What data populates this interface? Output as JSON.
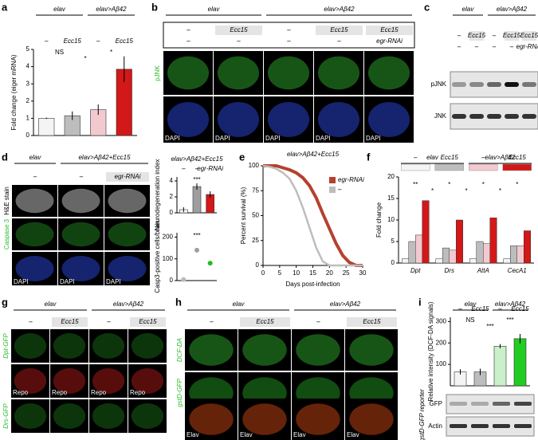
{
  "panels": {
    "b": {
      "letter": "b",
      "groups": [
        "elav",
        "elav>Aβ42"
      ],
      "conditions": [
        "–",
        "Ecc15",
        "–",
        "Ecc15",
        "Ecc15"
      ],
      "rnai": [
        "–",
        "–",
        "–",
        "–",
        "egr-RNAi"
      ],
      "stain": "pJNK",
      "dapi": "DAPI"
    },
    "c": {
      "letter": "c",
      "groups": [
        "elav",
        "elav>Aβ42"
      ],
      "conditions": [
        "–",
        "Ecc15",
        "–",
        "Ecc15",
        "Ecc15"
      ],
      "rnai": [
        "–",
        "–",
        "–",
        "–",
        "egr-RNAi"
      ],
      "blots": [
        "pJNK",
        "JNK"
      ]
    },
    "d": {
      "letter": "d",
      "groups": [
        "elav",
        "elav>Aβ42+Ecc15"
      ],
      "conditions": [
        "–",
        "–",
        "egr-RNAi"
      ],
      "rows": [
        "H&E stain",
        "Caspase 3"
      ],
      "dapi": "DAPI"
    },
    "g": {
      "letter": "g",
      "groups": [
        "elav",
        "elav>Aβ42"
      ],
      "conditions": [
        "–",
        "Ecc15",
        "–",
        "Ecc15"
      ],
      "rows": [
        "Dpt-GFP",
        "Drs-GFP"
      ],
      "counter": "Repo"
    },
    "h": {
      "letter": "h",
      "groups": [
        "elav",
        "elav>Aβ42"
      ],
      "conditions": [
        "–",
        "Ecc15",
        "–",
        "Ecc15"
      ],
      "rows": [
        "DCF-DA",
        "gstD-GFP"
      ],
      "counter": "Elav"
    },
    "i": {
      "blots": [
        "GFP",
        "Actin"
      ],
      "reporter": "gstD-GFP reporter"
    }
  },
  "chart_data": [
    {
      "type": "bar",
      "letter": "a",
      "groups": [
        "elav",
        "elav>Aβ42"
      ],
      "categories": [
        "–",
        "Ecc15",
        "–",
        "Ecc15"
      ],
      "ylabel": "Fold change (eiger mRNA)",
      "values": [
        1,
        1.15,
        1.5,
        3.85
      ],
      "errors": [
        0.04,
        0.25,
        0.3,
        0.75
      ],
      "colors": [
        "#f4f4f4",
        "#bdbdbd",
        "#f3c9d0",
        "#d21818"
      ],
      "ylim": [
        0,
        5
      ],
      "yticks": [
        0,
        1,
        2,
        3,
        4,
        5
      ],
      "annotations": [
        "NS",
        "*",
        "*"
      ]
    },
    {
      "type": "bar",
      "title": "elav>Aβ42+Ecc15",
      "categories": [
        "–",
        "–",
        "egr-RNAi"
      ],
      "ylabel": "Neurodegeneration index",
      "values": [
        0.4,
        3.3,
        2.3
      ],
      "errors": [
        0.3,
        0.4,
        0.4
      ],
      "colors": [
        "#ffffff",
        "#9e9e9e",
        "#d21818"
      ],
      "ylim": [
        0,
        4.5
      ],
      "yticks": [
        0,
        2,
        4
      ],
      "annotations": [
        "***"
      ]
    },
    {
      "type": "dot",
      "ylabel": "Casp3-positive cells/brain",
      "values": [
        5,
        140,
        80
      ],
      "colors": [
        "#bbbbbb",
        "#9e9e9e",
        "#22bb22"
      ],
      "ylim": [
        0,
        220
      ],
      "yticks": [
        0,
        100,
        200
      ],
      "annotations": [
        "***"
      ]
    },
    {
      "type": "line",
      "letter": "e",
      "title": "elav>Aβ42+Ecc15",
      "xlabel": "Days post-infection",
      "ylabel": "Percent survival (%)",
      "x": [
        0,
        2,
        4,
        6,
        8,
        10,
        12,
        14,
        16,
        18,
        20,
        22,
        24,
        26,
        28,
        30
      ],
      "series": [
        {
          "name": "egr-RNAi",
          "color": "#b5412f",
          "values": [
            100,
            100,
            100,
            98,
            96,
            93,
            88,
            80,
            68,
            52,
            37,
            22,
            10,
            3,
            0,
            0
          ]
        },
        {
          "name": "–",
          "color": "#bdbdbd",
          "values": [
            100,
            99,
            97,
            93,
            87,
            75,
            58,
            38,
            18,
            4,
            0,
            0,
            0,
            0,
            0,
            0
          ]
        }
      ],
      "xlim": [
        0,
        30
      ],
      "ylim": [
        0,
        100
      ],
      "xticks": [
        0,
        5,
        10,
        15,
        20,
        25,
        30
      ],
      "yticks": [
        0,
        25,
        50,
        75,
        100
      ],
      "legend": "upper right"
    },
    {
      "type": "grouped_bar",
      "letter": "f",
      "groups": [
        "elav",
        "elav>Aβ42"
      ],
      "ylabel": "Fold change",
      "categories": [
        "Dpt",
        "Drs",
        "AttA",
        "CecA1"
      ],
      "series": [
        {
          "name": "–",
          "color": "#f4f4f4",
          "values": [
            1,
            1,
            1,
            1
          ]
        },
        {
          "name": "Ecc15",
          "color": "#bdbdbd",
          "values": [
            5,
            3.5,
            5,
            4
          ]
        },
        {
          "name": "–",
          "color": "#f3c9d0",
          "values": [
            6.5,
            3,
            4.5,
            4
          ]
        },
        {
          "name": "Ecc15",
          "color": "#d21818",
          "values": [
            14.5,
            10,
            10.5,
            7.5
          ]
        }
      ],
      "ylim": [
        0,
        20
      ],
      "yticks": [
        0,
        5,
        10,
        15,
        20
      ],
      "annotations": [
        "**",
        "*",
        "*",
        "*",
        "*",
        "*",
        "*"
      ]
    },
    {
      "type": "bar",
      "letter": "i",
      "groups": [
        "elav",
        "elav>Aβ42"
      ],
      "categories": [
        "–",
        "Ecc15",
        "–",
        "Ecc15"
      ],
      "ylabel": "Relative intensity (DCF-DA signals)",
      "values": [
        65,
        65,
        185,
        220
      ],
      "errors": [
        12,
        15,
        10,
        22
      ],
      "colors": [
        "#f4f4f4",
        "#bdbdbd",
        "#c9f0c9",
        "#22cc22"
      ],
      "ylim": [
        0,
        320
      ],
      "yticks": [
        100,
        200,
        300
      ],
      "annotations": [
        "NS",
        "***",
        "***"
      ]
    }
  ]
}
